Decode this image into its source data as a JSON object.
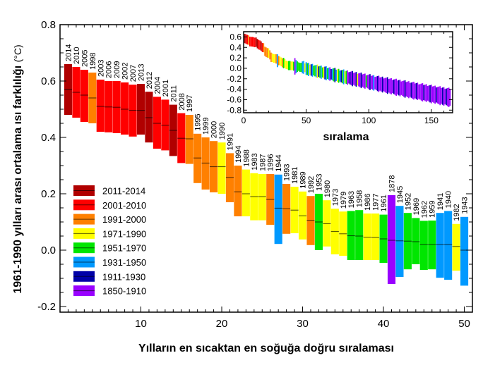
{
  "chart_data": {
    "type": "bar",
    "title": "",
    "xlabel": "Yılların en sıcaktan en soğuğa doğru sıralaması",
    "ylabel": "1961-1990 yılları arası ortalama ısı farklılığı",
    "ylabel_unit": "(°C)",
    "xlim": [
      0,
      51
    ],
    "ylim": [
      -0.22,
      0.8
    ],
    "x_ticks": [
      10,
      20,
      30,
      40,
      50
    ],
    "y_ticks": [
      "-0.2",
      "0.0",
      "0.2",
      "0.4",
      "0.6",
      "0.8"
    ],
    "y_tick_values": [
      -0.2,
      0.0,
      0.2,
      0.4,
      0.6,
      0.8
    ],
    "legend": {
      "placement": "bottom-left",
      "entries": [
        {
          "label": "2011-2014",
          "color": "#b00000"
        },
        {
          "label": "2001-2010",
          "color": "#ff0000"
        },
        {
          "label": "1991-2000",
          "color": "#ff8000"
        },
        {
          "label": "1971-1990",
          "color": "#ffff00"
        },
        {
          "label": "1951-1970",
          "color": "#00e600"
        },
        {
          "label": "1931-1950",
          "color": "#0099ff"
        },
        {
          "label": "1911-1930",
          "color": "#0000a8"
        },
        {
          "label": "1850-1910",
          "color": "#9900ff"
        }
      ]
    },
    "bars": [
      {
        "rank": 1,
        "year": "2014",
        "period": 0,
        "value": 0.57,
        "low": 0.48,
        "high": 0.66
      },
      {
        "rank": 2,
        "year": "2010",
        "period": 1,
        "value": 0.56,
        "low": 0.47,
        "high": 0.65
      },
      {
        "rank": 3,
        "year": "2005",
        "period": 1,
        "value": 0.55,
        "low": 0.455,
        "high": 0.64
      },
      {
        "rank": 4,
        "year": "1998",
        "period": 2,
        "value": 0.54,
        "low": 0.45,
        "high": 0.63
      },
      {
        "rank": 5,
        "year": "2003",
        "period": 1,
        "value": 0.51,
        "low": 0.42,
        "high": 0.605
      },
      {
        "rank": 6,
        "year": "2006",
        "period": 1,
        "value": 0.508,
        "low": 0.418,
        "high": 0.6
      },
      {
        "rank": 7,
        "year": "2009",
        "period": 1,
        "value": 0.507,
        "low": 0.415,
        "high": 0.6
      },
      {
        "rank": 8,
        "year": "2002",
        "period": 1,
        "value": 0.5,
        "low": 0.41,
        "high": 0.595
      },
      {
        "rank": 9,
        "year": "2007",
        "period": 1,
        "value": 0.496,
        "low": 0.403,
        "high": 0.587
      },
      {
        "rank": 10,
        "year": "2013",
        "period": 0,
        "value": 0.496,
        "low": 0.41,
        "high": 0.59
      },
      {
        "rank": 11,
        "year": "2012",
        "period": 0,
        "value": 0.47,
        "low": 0.382,
        "high": 0.562
      },
      {
        "rank": 12,
        "year": "2004",
        "period": 1,
        "value": 0.45,
        "low": 0.36,
        "high": 0.544
      },
      {
        "rank": 13,
        "year": "2001",
        "period": 1,
        "value": 0.443,
        "low": 0.354,
        "high": 0.534
      },
      {
        "rank": 14,
        "year": "2011",
        "period": 0,
        "value": 0.425,
        "low": 0.334,
        "high": 0.516
      },
      {
        "rank": 15,
        "year": "2008",
        "period": 1,
        "value": 0.397,
        "low": 0.309,
        "high": 0.486
      },
      {
        "rank": 16,
        "year": "1997",
        "period": 2,
        "value": 0.395,
        "low": 0.306,
        "high": 0.48
      },
      {
        "rank": 17,
        "year": "1995",
        "period": 2,
        "value": 0.327,
        "low": 0.238,
        "high": 0.413
      },
      {
        "rank": 18,
        "year": "1999",
        "period": 2,
        "value": 0.309,
        "low": 0.215,
        "high": 0.4
      },
      {
        "rank": 19,
        "year": "2000",
        "period": 2,
        "value": 0.296,
        "low": 0.205,
        "high": 0.387
      },
      {
        "rank": 20,
        "year": "1990",
        "period": 3,
        "value": 0.296,
        "low": 0.2,
        "high": 0.382
      },
      {
        "rank": 21,
        "year": "1991",
        "period": 2,
        "value": 0.258,
        "low": 0.17,
        "high": 0.344
      },
      {
        "rank": 22,
        "year": "1994",
        "period": 2,
        "value": 0.207,
        "low": 0.12,
        "high": 0.3
      },
      {
        "rank": 23,
        "year": "1988",
        "period": 3,
        "value": 0.2,
        "low": 0.12,
        "high": 0.286
      },
      {
        "rank": 24,
        "year": "1983",
        "period": 3,
        "value": 0.19,
        "low": 0.106,
        "high": 0.273
      },
      {
        "rank": 25,
        "year": "1987",
        "period": 3,
        "value": 0.19,
        "low": 0.106,
        "high": 0.27
      },
      {
        "rank": 26,
        "year": "1996",
        "period": 2,
        "value": 0.18,
        "low": 0.09,
        "high": 0.27
      },
      {
        "rank": 27,
        "year": "1944",
        "period": 5,
        "value": 0.149,
        "low": 0.022,
        "high": 0.268
      },
      {
        "rank": 28,
        "year": "1993",
        "period": 2,
        "value": 0.147,
        "low": 0.058,
        "high": 0.235
      },
      {
        "rank": 29,
        "year": "1981",
        "period": 3,
        "value": 0.142,
        "low": 0.06,
        "high": 0.225
      },
      {
        "rank": 30,
        "year": "1989",
        "period": 3,
        "value": 0.122,
        "low": 0.038,
        "high": 0.208
      },
      {
        "rank": 31,
        "year": "1992",
        "period": 2,
        "value": 0.106,
        "low": 0.018,
        "high": 0.192
      },
      {
        "rank": 32,
        "year": "1953",
        "period": 4,
        "value": 0.1,
        "low": 0.0,
        "high": 0.2
      },
      {
        "rank": 33,
        "year": "1980",
        "period": 3,
        "value": 0.094,
        "low": 0.013,
        "high": 0.177
      },
      {
        "rank": 34,
        "year": "1973",
        "period": 3,
        "value": 0.066,
        "low": -0.015,
        "high": 0.147
      },
      {
        "rank": 35,
        "year": "1979",
        "period": 3,
        "value": 0.058,
        "low": -0.02,
        "high": 0.137
      },
      {
        "rank": 36,
        "year": "1963",
        "period": 4,
        "value": 0.051,
        "low": -0.035,
        "high": 0.139
      },
      {
        "rank": 37,
        "year": "1958",
        "period": 4,
        "value": 0.05,
        "low": -0.035,
        "high": 0.142
      },
      {
        "rank": 38,
        "year": "1986",
        "period": 3,
        "value": 0.046,
        "low": -0.035,
        "high": 0.13
      },
      {
        "rank": 39,
        "year": "1977",
        "period": 3,
        "value": 0.045,
        "low": -0.035,
        "high": 0.13
      },
      {
        "rank": 40,
        "year": "1961",
        "period": 4,
        "value": 0.04,
        "low": -0.045,
        "high": 0.126
      },
      {
        "rank": 41,
        "year": "1878",
        "period": 7,
        "value": 0.035,
        "low": -0.12,
        "high": 0.195
      },
      {
        "rank": 42,
        "year": "1945",
        "period": 5,
        "value": 0.033,
        "low": -0.095,
        "high": 0.157
      },
      {
        "rank": 43,
        "year": "1952",
        "period": 4,
        "value": 0.032,
        "low": -0.068,
        "high": 0.132
      },
      {
        "rank": 44,
        "year": "1969",
        "period": 4,
        "value": 0.03,
        "low": -0.05,
        "high": 0.114
      },
      {
        "rank": 45,
        "year": "1962",
        "period": 4,
        "value": 0.02,
        "low": -0.07,
        "high": 0.104
      },
      {
        "rank": 46,
        "year": "1959",
        "period": 4,
        "value": 0.02,
        "low": -0.068,
        "high": 0.105
      },
      {
        "rank": 47,
        "year": "1941",
        "period": 5,
        "value": 0.02,
        "low": -0.098,
        "high": 0.132
      },
      {
        "rank": 48,
        "year": "1940",
        "period": 5,
        "value": 0.02,
        "low": -0.105,
        "high": 0.139
      },
      {
        "rank": 49,
        "year": "1982",
        "period": 3,
        "value": 0.013,
        "low": -0.073,
        "high": 0.093
      },
      {
        "rank": 50,
        "year": "1943",
        "period": 5,
        "value": 0.0,
        "low": -0.126,
        "high": 0.118
      }
    ],
    "inset": {
      "type": "bar",
      "xlabel": "sıralama",
      "xlim": [
        0,
        167
      ],
      "ylim": [
        -0.85,
        0.7
      ],
      "x_ticks": [
        "0",
        "50",
        "100",
        "150"
      ],
      "x_tick_values": [
        0,
        50,
        100,
        150
      ],
      "y_ticks": [
        "0.6",
        "0.4",
        "0.2",
        "0.0",
        "-0.2",
        "-0.4",
        "-0.6",
        "-0.8"
      ],
      "y_tick_values": [
        0.6,
        0.4,
        0.2,
        0.0,
        -0.2,
        -0.4,
        -0.6,
        -0.8
      ],
      "n_ranks": 165,
      "tail_center_start": -0.01,
      "tail_center_end": -0.56,
      "tail_periods": [
        4,
        5,
        3,
        6,
        5,
        4,
        4,
        5,
        3,
        6,
        4,
        5,
        4,
        3,
        6,
        5,
        4,
        5,
        7,
        6,
        5,
        4,
        6,
        5,
        3,
        4,
        5,
        6,
        4,
        5,
        3,
        4,
        7,
        7,
        6,
        7,
        6,
        7,
        7,
        6,
        3,
        7,
        7,
        6,
        7,
        7,
        7,
        4,
        7,
        7,
        6,
        7,
        7,
        5,
        7,
        7,
        6,
        7,
        7,
        7,
        6,
        7,
        7,
        7,
        6,
        7,
        7,
        7,
        7,
        6,
        7,
        7,
        7,
        6,
        7,
        7,
        7,
        7,
        6,
        7,
        7,
        7,
        7,
        6,
        7,
        7,
        7,
        6,
        7,
        7,
        7,
        7,
        7,
        6,
        7,
        7,
        7,
        7,
        6,
        7,
        7,
        7,
        7,
        6,
        7,
        7,
        7,
        7,
        6,
        7,
        7,
        6,
        7,
        7,
        7
      ]
    }
  }
}
